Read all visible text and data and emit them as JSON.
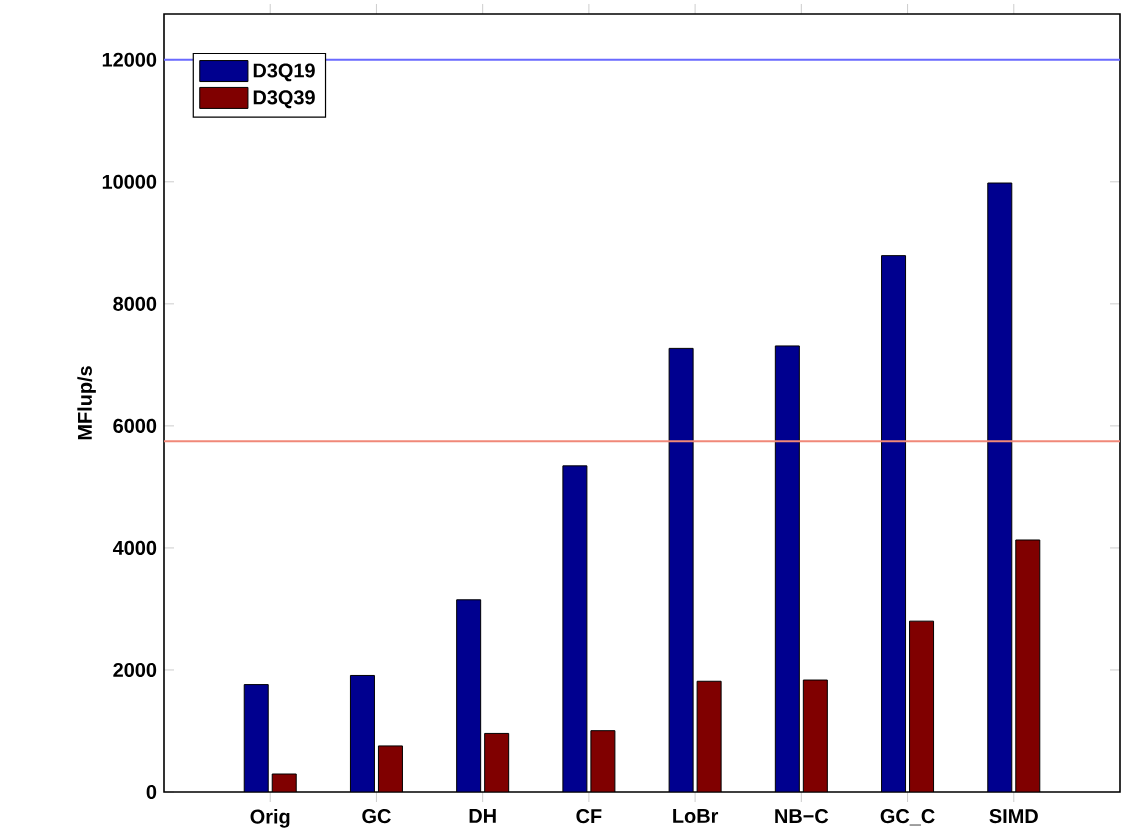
{
  "chart_data": {
    "type": "bar",
    "ylabel": "MFlup/s",
    "categories": [
      "Orig",
      "GC",
      "DH",
      "CF",
      "LoBr",
      "NB−C",
      "GC_C",
      "SIMD"
    ],
    "series": [
      {
        "name": "D3Q19",
        "color": "#00008f",
        "values": [
          1760,
          1910,
          3150,
          5345,
          7270,
          7310,
          8790,
          9980
        ]
      },
      {
        "name": "D3Q39",
        "color": "#800000",
        "values": [
          295,
          755,
          960,
          1005,
          1815,
          1835,
          2800,
          4130
        ]
      }
    ],
    "ylim": [
      0,
      12750
    ],
    "yticks": [
      0,
      2000,
      4000,
      6000,
      8000,
      10000,
      12000
    ],
    "ref_lines": [
      {
        "axis": "y",
        "value": 12000,
        "color": "#6a6aff"
      },
      {
        "axis": "y",
        "value": 5750,
        "color": "#f08878"
      }
    ],
    "legend": "top left",
    "grid": false
  }
}
